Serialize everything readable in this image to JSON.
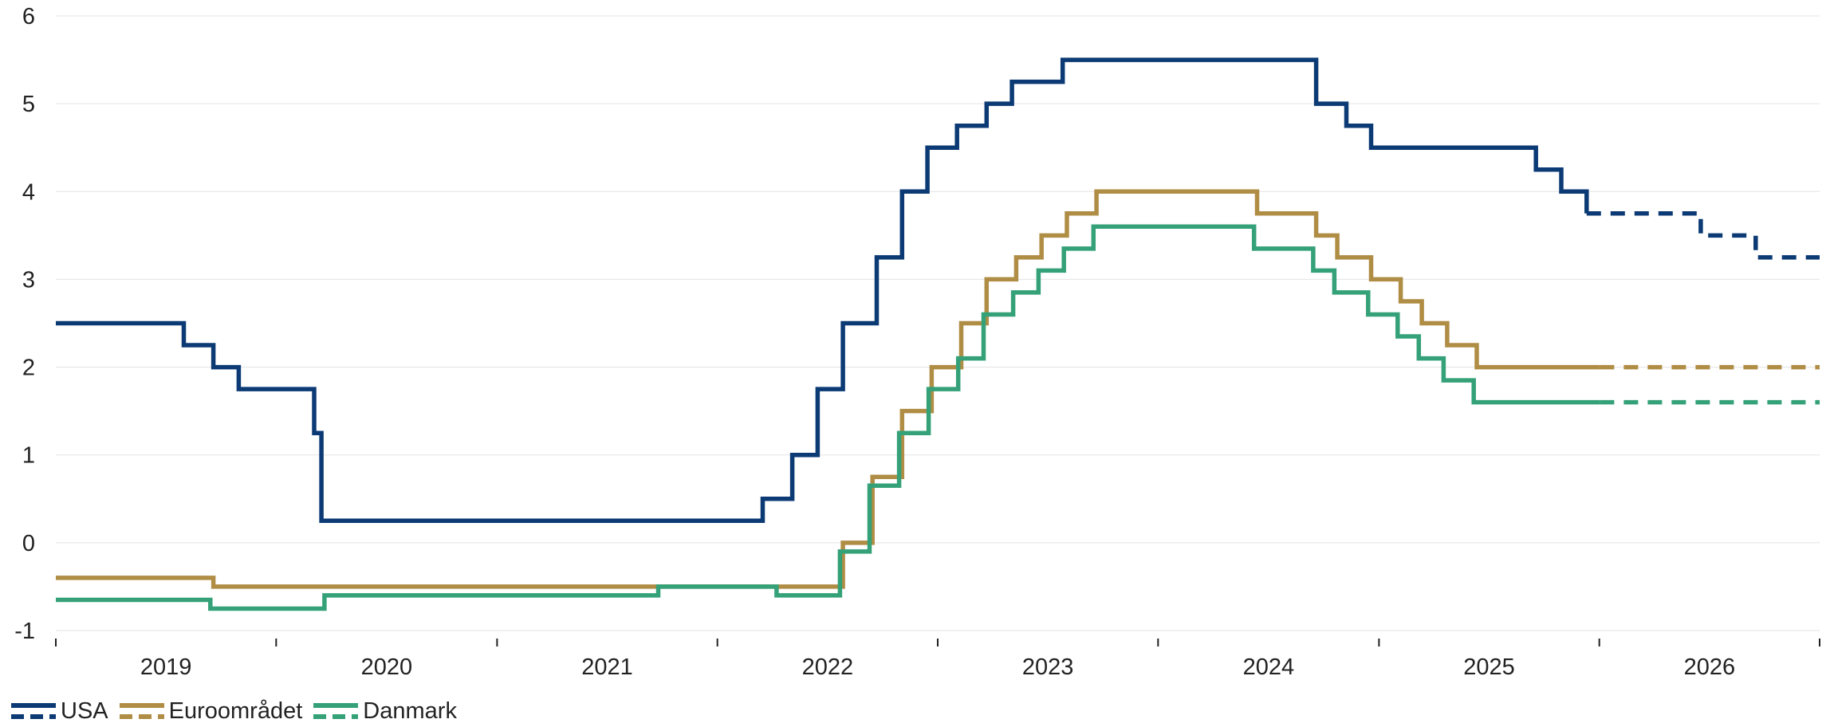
{
  "chart_data": {
    "type": "line",
    "step": true,
    "title": "",
    "xlabel": "",
    "ylabel": "",
    "ylim": [
      -1,
      6
    ],
    "yticks": [
      "-1",
      "0",
      "1",
      "2",
      "3",
      "4",
      "5",
      "6"
    ],
    "xlim": [
      "2018-12-31",
      "2026-12-31"
    ],
    "xticks": [
      "2019",
      "2020",
      "2021",
      "2022",
      "2023",
      "2024",
      "2025",
      "2026"
    ],
    "grid": "horizontal",
    "legend_position": "bottom-left",
    "series": [
      {
        "name": "USA",
        "color": "#0b3a74",
        "points": [
          [
            "2018-12-31",
            2.5
          ],
          [
            "2019-07-31",
            2.25
          ],
          [
            "2019-09-18",
            2.0
          ],
          [
            "2019-10-30",
            1.75
          ],
          [
            "2020-03-03",
            1.25
          ],
          [
            "2020-03-15",
            0.25
          ],
          [
            "2022-03-16",
            0.5
          ],
          [
            "2022-05-04",
            1.0
          ],
          [
            "2022-06-15",
            1.75
          ],
          [
            "2022-07-27",
            2.5
          ],
          [
            "2022-09-21",
            3.25
          ],
          [
            "2022-11-02",
            4.0
          ],
          [
            "2022-12-14",
            4.5
          ],
          [
            "2023-02-01",
            4.75
          ],
          [
            "2023-03-22",
            5.0
          ],
          [
            "2023-05-03",
            5.25
          ],
          [
            "2023-07-26",
            5.5
          ],
          [
            "2024-09-18",
            5.0
          ],
          [
            "2024-11-07",
            4.75
          ],
          [
            "2024-12-18",
            4.5
          ],
          [
            "2025-09-17",
            4.25
          ],
          [
            "2025-10-29",
            4.0
          ],
          [
            "2025-12-10",
            3.75
          ]
        ],
        "forecast": [
          [
            "2025-12-10",
            3.75
          ],
          [
            "2026-06-17",
            3.5
          ],
          [
            "2026-09-16",
            3.25
          ],
          [
            "2026-12-31",
            3.25
          ]
        ]
      },
      {
        "name": "Euroområdet",
        "color": "#b08d45",
        "points": [
          [
            "2018-12-31",
            -0.4
          ],
          [
            "2019-09-18",
            -0.5
          ],
          [
            "2022-07-27",
            0.0
          ],
          [
            "2022-09-14",
            0.75
          ],
          [
            "2022-11-02",
            1.5
          ],
          [
            "2022-12-21",
            2.0
          ],
          [
            "2023-02-08",
            2.5
          ],
          [
            "2023-03-22",
            3.0
          ],
          [
            "2023-05-10",
            3.25
          ],
          [
            "2023-06-21",
            3.5
          ],
          [
            "2023-08-02",
            3.75
          ],
          [
            "2023-09-20",
            4.0
          ],
          [
            "2024-06-12",
            3.75
          ],
          [
            "2024-09-18",
            3.5
          ],
          [
            "2024-10-23",
            3.25
          ],
          [
            "2024-12-18",
            3.0
          ],
          [
            "2025-02-05",
            2.75
          ],
          [
            "2025-03-12",
            2.5
          ],
          [
            "2025-04-23",
            2.25
          ],
          [
            "2025-06-11",
            2.0
          ],
          [
            "2026-01-01",
            2.0
          ]
        ],
        "forecast": [
          [
            "2026-01-01",
            2.0
          ],
          [
            "2026-12-31",
            2.0
          ]
        ]
      },
      {
        "name": "Danmark",
        "color": "#34a178",
        "points": [
          [
            "2018-12-31",
            -0.65
          ],
          [
            "2019-09-13",
            -0.75
          ],
          [
            "2020-03-20",
            -0.6
          ],
          [
            "2021-09-24",
            -0.5
          ],
          [
            "2022-04-08",
            -0.6
          ],
          [
            "2022-07-22",
            -0.1
          ],
          [
            "2022-09-09",
            0.65
          ],
          [
            "2022-10-28",
            1.25
          ],
          [
            "2022-12-16",
            1.75
          ],
          [
            "2023-02-03",
            2.1
          ],
          [
            "2023-03-17",
            2.6
          ],
          [
            "2023-05-05",
            2.85
          ],
          [
            "2023-06-16",
            3.1
          ],
          [
            "2023-07-28",
            3.35
          ],
          [
            "2023-09-15",
            3.6
          ],
          [
            "2024-06-07",
            3.35
          ],
          [
            "2024-09-13",
            3.1
          ],
          [
            "2024-10-18",
            2.85
          ],
          [
            "2024-12-13",
            2.6
          ],
          [
            "2025-01-31",
            2.35
          ],
          [
            "2025-03-07",
            2.1
          ],
          [
            "2025-04-17",
            1.85
          ],
          [
            "2025-06-06",
            1.6
          ],
          [
            "2026-01-01",
            1.6
          ]
        ],
        "forecast": [
          [
            "2026-01-01",
            1.6
          ],
          [
            "2026-12-31",
            1.6
          ]
        ]
      }
    ]
  }
}
